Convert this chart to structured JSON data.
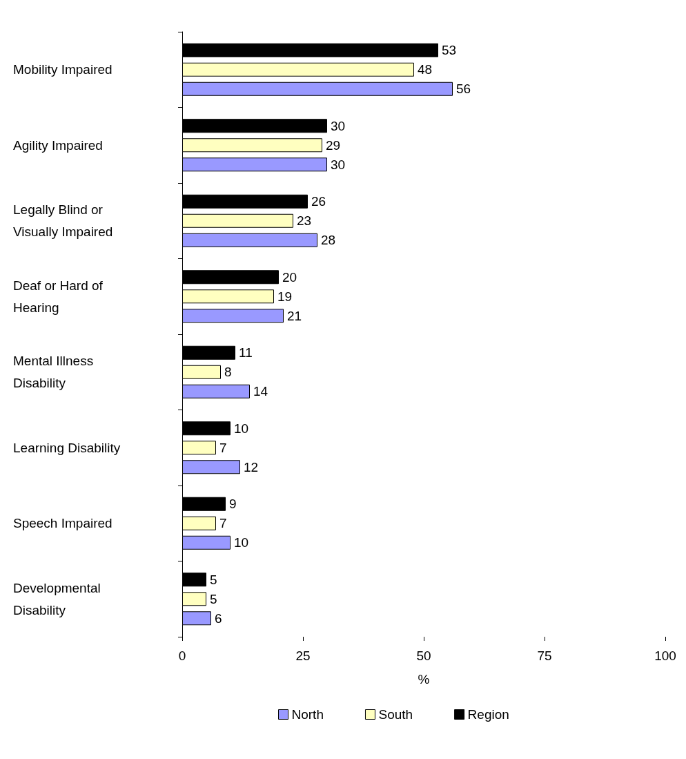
{
  "chart_data": {
    "type": "bar",
    "orientation": "horizontal",
    "xlabel": "%",
    "categories": [
      "Mobility Impaired",
      "Agility Impaired",
      "Legally Blind or\nVisually Impaired",
      "Deaf or Hard of\nHearing",
      "Mental Illness\nDisability",
      "Learning Disability",
      "Speech Impaired",
      "Developmental\nDisability"
    ],
    "series": [
      {
        "name": "North",
        "color": "#9999ff",
        "values": [
          56,
          30,
          28,
          21,
          14,
          12,
          10,
          6
        ]
      },
      {
        "name": "South",
        "color": "#ffffc0",
        "values": [
          48,
          29,
          23,
          19,
          8,
          7,
          7,
          5
        ]
      },
      {
        "name": "Region",
        "color": "#000000",
        "values": [
          53,
          30,
          26,
          20,
          11,
          10,
          9,
          5
        ]
      }
    ],
    "xlim": [
      0,
      100
    ],
    "xticks": [
      0,
      25,
      50,
      75,
      100
    ],
    "grid": false,
    "legend": "bottom",
    "data_labels": true
  }
}
